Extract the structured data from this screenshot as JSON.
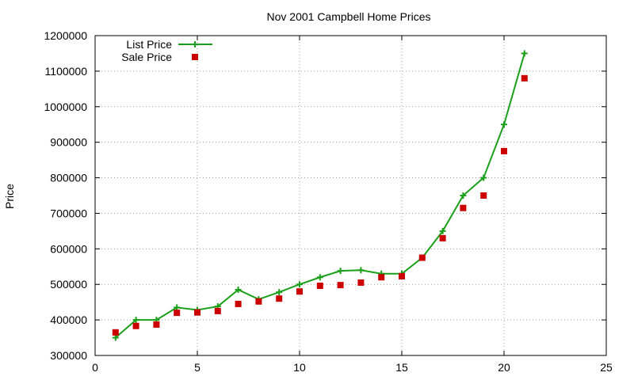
{
  "chart_data": {
    "type": "scatter",
    "title": "Nov 2001 Campbell Home Prices",
    "xlabel": "",
    "ylabel": "Price",
    "xlim": [
      0,
      25
    ],
    "ylim": [
      300000,
      1200000
    ],
    "xticks": [
      0,
      5,
      10,
      15,
      20,
      25
    ],
    "yticks": [
      300000,
      400000,
      500000,
      600000,
      700000,
      800000,
      900000,
      1000000,
      1100000,
      1200000
    ],
    "grid": true,
    "legend_position": "top-left",
    "series": [
      {
        "name": "List Price",
        "style": "line-with-plus-markers",
        "color": "#1aa01a",
        "x": [
          1,
          2,
          3,
          4,
          5,
          6,
          7,
          8,
          9,
          10,
          11,
          12,
          13,
          14,
          15,
          16,
          17,
          18,
          19,
          20,
          21
        ],
        "y": [
          350000,
          400000,
          400000,
          435000,
          428000,
          438000,
          485000,
          458000,
          478000,
          500000,
          520000,
          538000,
          540000,
          530000,
          530000,
          575000,
          650000,
          750000,
          800000,
          950000,
          1150000
        ]
      },
      {
        "name": "Sale Price",
        "style": "square-markers",
        "color": "#cc0000",
        "x": [
          1,
          2,
          3,
          4,
          5,
          6,
          7,
          8,
          9,
          10,
          11,
          12,
          13,
          14,
          15,
          16,
          17,
          18,
          19,
          20,
          21
        ],
        "y": [
          365000,
          383000,
          387000,
          420000,
          421000,
          425000,
          445000,
          452000,
          460000,
          480000,
          496000,
          498000,
          505000,
          520000,
          523000,
          575000,
          630000,
          715000,
          750000,
          875000,
          1080000
        ]
      }
    ]
  }
}
